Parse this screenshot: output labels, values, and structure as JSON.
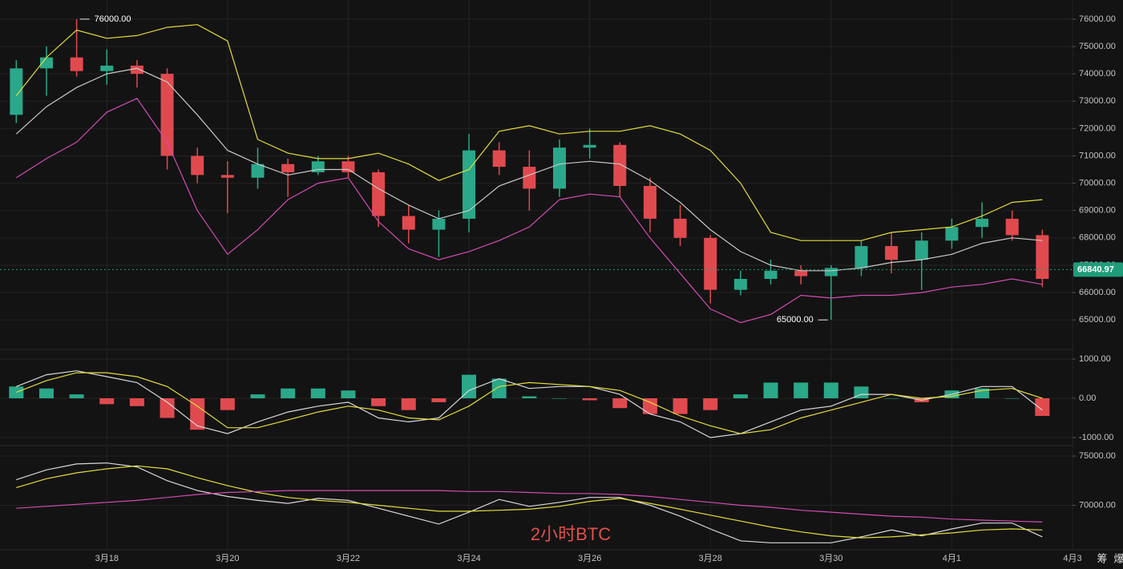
{
  "chart_data": [
    {
      "type": "candlestick",
      "x": [
        16.5,
        17,
        17.5,
        18,
        18.5,
        19,
        19.5,
        20,
        20.5,
        21,
        21.5,
        22,
        22.5,
        23,
        23.5,
        24,
        24.5,
        25,
        25.5,
        26,
        26.5,
        27,
        27.5,
        28,
        28.5,
        29,
        29.5,
        30,
        30.5,
        31,
        31.5,
        32,
        32.5,
        33,
        33.5
      ],
      "open": [
        72500,
        74200,
        74600,
        74100,
        74300,
        74000,
        71000,
        70300,
        70200,
        70700,
        70400,
        70800,
        70400,
        68800,
        68300,
        68700,
        71200,
        70600,
        69800,
        71300,
        71400,
        69900,
        68700,
        68000,
        66100,
        66500,
        66800,
        66600,
        66900,
        67700,
        67200,
        67900,
        68400,
        68700,
        68100
      ],
      "high": [
        74500,
        75000,
        76000,
        74900,
        74500,
        74200,
        71300,
        70800,
        71300,
        70900,
        71000,
        71000,
        70500,
        69200,
        69000,
        71800,
        71500,
        71200,
        71600,
        72000,
        71500,
        70200,
        69200,
        68100,
        66800,
        67200,
        67000,
        67000,
        67900,
        68200,
        68200,
        68700,
        69300,
        69000,
        68300
      ],
      "low": [
        72200,
        73200,
        73900,
        73600,
        73500,
        70500,
        70000,
        68900,
        69800,
        69500,
        70300,
        70200,
        68400,
        67800,
        67300,
        68200,
        70300,
        69000,
        69500,
        70900,
        69500,
        68200,
        67700,
        65600,
        65900,
        66300,
        66300,
        65000,
        66600,
        66700,
        66100,
        67600,
        68000,
        67900,
        66200
      ],
      "close": [
        74200,
        74600,
        74100,
        74300,
        74000,
        71000,
        70300,
        70200,
        70700,
        70400,
        70800,
        70400,
        68800,
        68300,
        68700,
        71200,
        70600,
        69800,
        71300,
        71400,
        69900,
        68700,
        68000,
        66100,
        66500,
        66800,
        66600,
        66900,
        67700,
        67200,
        67900,
        68400,
        68700,
        68100,
        66500
      ],
      "up_color": "#2aa889",
      "down_color": "#e04a4f",
      "lines": [
        {
          "color": "#e3dc3c",
          "values": [
            73200,
            74600,
            75600,
            75300,
            75400,
            75700,
            75800,
            75200,
            71600,
            71100,
            70900,
            70900,
            71100,
            70700,
            70100,
            70500,
            71900,
            72100,
            71800,
            71900,
            71900,
            72100,
            71800,
            71200,
            70000,
            68200,
            67900,
            67900,
            67900,
            68200,
            68300,
            68400,
            68800,
            69300,
            69400
          ]
        },
        {
          "color": "#c8c8c8",
          "values": [
            71800,
            72800,
            73500,
            74000,
            74200,
            73700,
            72500,
            71200,
            70700,
            70300,
            70500,
            70500,
            69800,
            69200,
            68700,
            69000,
            69900,
            70300,
            70700,
            70800,
            70700,
            70100,
            69300,
            68300,
            67500,
            67000,
            66800,
            66800,
            66900,
            67100,
            67200,
            67400,
            67800,
            68000,
            67900
          ]
        },
        {
          "color": "#d24cb2",
          "values": [
            70200,
            70900,
            71500,
            72600,
            73100,
            71500,
            69000,
            67400,
            68300,
            69400,
            70000,
            70200,
            68600,
            67600,
            67200,
            67500,
            67900,
            68400,
            69400,
            69600,
            69500,
            68000,
            66700,
            65400,
            64900,
            65200,
            65900,
            65800,
            65900,
            65900,
            66000,
            66200,
            66300,
            66500,
            66300
          ]
        }
      ],
      "ylim": [
        63950,
        76700
      ],
      "yticks": [
        {
          "value": 76000,
          "label": "76000.00"
        },
        {
          "value": 75000,
          "label": "75000.00"
        },
        {
          "value": 74000,
          "label": "74000.00"
        },
        {
          "value": 73000,
          "label": "73000.00"
        },
        {
          "value": 72000,
          "label": "72000.00"
        },
        {
          "value": 71000,
          "label": "71000.00"
        },
        {
          "value": 70000,
          "label": "70000.00"
        },
        {
          "value": 69000,
          "label": "69000.00"
        },
        {
          "value": 68000,
          "label": "68000.00"
        },
        {
          "value": 67000,
          "label": "67000.00"
        },
        {
          "value": 66000,
          "label": "66000.00"
        },
        {
          "value": 65000,
          "label": "65000.00"
        }
      ],
      "last_price": 66840.97,
      "last_price_color": "#1f9c7a",
      "annotations": [
        {
          "x": 17.5,
          "value": 76000,
          "label": "76000.00"
        },
        {
          "x": 30,
          "value": 65000,
          "label": "65000.00"
        }
      ],
      "grid": true
    },
    {
      "type": "macd",
      "x": [
        16.5,
        17,
        17.5,
        18,
        18.5,
        19,
        19.5,
        20,
        20.5,
        21,
        21.5,
        22,
        22.5,
        23,
        23.5,
        24,
        24.5,
        25,
        25.5,
        26,
        26.5,
        27,
        27.5,
        28,
        28.5,
        29,
        29.5,
        30,
        30.5,
        31,
        31.5,
        32,
        32.5,
        33,
        33.5
      ],
      "values": [
        300,
        250,
        100,
        -150,
        -200,
        -500,
        -800,
        -300,
        100,
        250,
        250,
        200,
        -200,
        -300,
        -100,
        600,
        500,
        50,
        0,
        -50,
        -250,
        -400,
        -400,
        -300,
        100,
        400,
        400,
        400,
        300,
        0,
        -100,
        200,
        250,
        0,
        -450
      ],
      "up_color": "#2aa889",
      "down_color": "#e04a4f",
      "lines": [
        {
          "color": "#d8d8d8",
          "values": [
            300,
            600,
            700,
            550,
            400,
            -100,
            -700,
            -900,
            -600,
            -350,
            -200,
            -100,
            -500,
            -600,
            -500,
            200,
            500,
            250,
            300,
            300,
            100,
            -400,
            -600,
            -1000,
            -900,
            -600,
            -300,
            -200,
            100,
            100,
            -50,
            100,
            300,
            300,
            -300
          ]
        },
        {
          "color": "#e3dc3c",
          "values": [
            150,
            450,
            650,
            650,
            550,
            300,
            -200,
            -750,
            -750,
            -550,
            -350,
            -200,
            -300,
            -500,
            -550,
            -200,
            300,
            400,
            350,
            300,
            200,
            -100,
            -450,
            -700,
            -900,
            -800,
            -500,
            -300,
            -100,
            100,
            0,
            50,
            200,
            250,
            0
          ]
        }
      ],
      "ylim": [
        -1184,
        1224
      ],
      "yticks": [
        {
          "value": 1000,
          "label": "1000.00"
        },
        {
          "value": 0,
          "label": "0.00"
        },
        {
          "value": -1000,
          "label": "-1000.00"
        }
      ],
      "grid": true
    },
    {
      "type": "line",
      "x": [
        16.5,
        17,
        17.5,
        18,
        18.5,
        19,
        19.5,
        20,
        20.5,
        21,
        21.5,
        22,
        22.5,
        23,
        23.5,
        24,
        24.5,
        25,
        25.5,
        26,
        26.5,
        27,
        27.5,
        28,
        28.5,
        29,
        29.5,
        30,
        30.5,
        31,
        31.5,
        32,
        32.5,
        33,
        33.5
      ],
      "lines": [
        {
          "color": "#d8d8d8",
          "values": [
            72600,
            73600,
            74200,
            74300,
            73900,
            72500,
            71500,
            70900,
            70500,
            70200,
            70700,
            70500,
            69700,
            68900,
            68100,
            69300,
            70600,
            69900,
            70300,
            70800,
            70800,
            70000,
            68900,
            67600,
            66400,
            66200,
            66200,
            66200,
            66800,
            67500,
            66900,
            67600,
            68200,
            68200,
            66800
          ]
        },
        {
          "color": "#e3dc3c",
          "values": [
            71800,
            72700,
            73300,
            73700,
            74000,
            73700,
            72800,
            72000,
            71300,
            70800,
            70500,
            70300,
            70000,
            69700,
            69400,
            69400,
            69500,
            69600,
            69900,
            70400,
            70700,
            70200,
            69600,
            69000,
            68400,
            67800,
            67300,
            66900,
            66700,
            66800,
            67000,
            67200,
            67500,
            67600,
            67500
          ]
        },
        {
          "color": "#d24cb2",
          "values": [
            69700,
            69900,
            70100,
            70300,
            70500,
            70800,
            71100,
            71300,
            71400,
            71500,
            71500,
            71500,
            71500,
            71500,
            71500,
            71400,
            71400,
            71300,
            71200,
            71200,
            71100,
            70900,
            70600,
            70300,
            70000,
            69800,
            69500,
            69300,
            69100,
            68900,
            68800,
            68600,
            68500,
            68400,
            68300
          ]
        }
      ],
      "ylim": [
        65570,
        75980
      ],
      "yticks": [
        {
          "value": 75000,
          "label": "75000.00"
        },
        {
          "value": 70000,
          "label": "70000.00"
        }
      ],
      "xlim": [
        16.23,
        33.96
      ],
      "xticks": [
        {
          "value": 18,
          "label": "3月18"
        },
        {
          "value": 20,
          "label": "3月20"
        },
        {
          "value": 22,
          "label": "3月22"
        },
        {
          "value": 24,
          "label": "3月24"
        },
        {
          "value": 26,
          "label": "3月26"
        },
        {
          "value": 28,
          "label": "3月28"
        },
        {
          "value": 30,
          "label": "3月30"
        },
        {
          "value": 32,
          "label": "4月1"
        },
        {
          "value": 34,
          "label": "4月3"
        }
      ],
      "grid": true
    }
  ],
  "watermark": "2小时BTC",
  "toolbar": [
    "筹",
    "爆"
  ]
}
